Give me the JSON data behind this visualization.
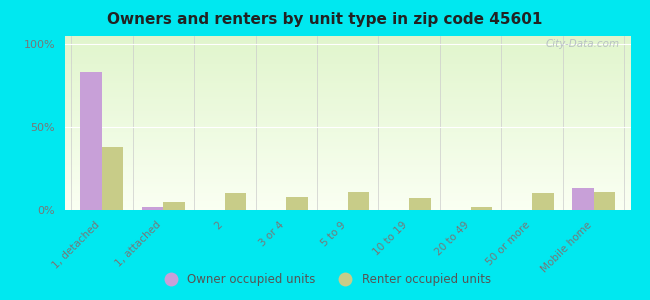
{
  "title": "Owners and renters by unit type in zip code 45601",
  "categories": [
    "1, detached",
    "1, attached",
    "2",
    "3 or 4",
    "5 to 9",
    "10 to 19",
    "20 to 49",
    "50 or more",
    "Mobile home"
  ],
  "owner_values": [
    83,
    2,
    0,
    0,
    0,
    0,
    0,
    0,
    13
  ],
  "renter_values": [
    38,
    5,
    10,
    8,
    11,
    7,
    2,
    10,
    11
  ],
  "owner_color": "#c8a0d8",
  "renter_color": "#c8cc88",
  "outer_background": "#00e8f0",
  "yticks": [
    0,
    50,
    100
  ],
  "ylabels": [
    "0%",
    "50%",
    "100%"
  ],
  "ylim": [
    0,
    105
  ],
  "bar_width": 0.35,
  "legend_owner": "Owner occupied units",
  "legend_renter": "Renter occupied units",
  "watermark": "City-Data.com",
  "tick_color": "#777777",
  "title_color": "#222222"
}
